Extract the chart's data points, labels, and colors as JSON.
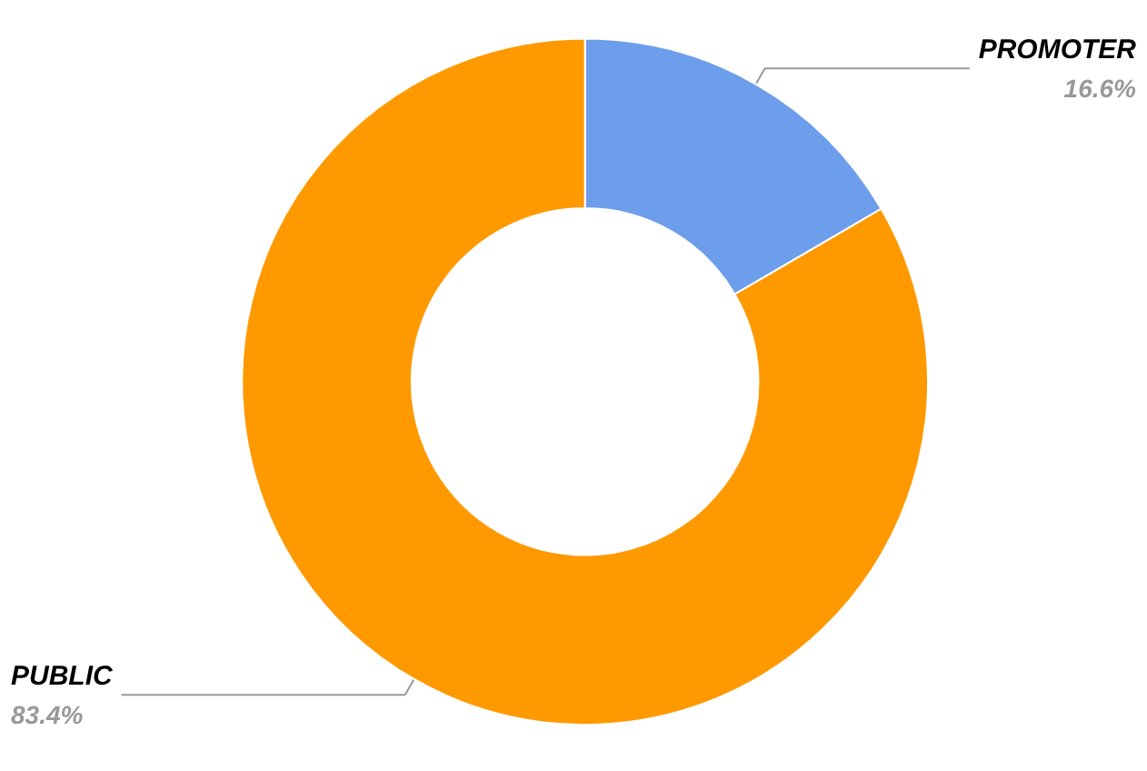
{
  "chart_data": {
    "type": "donut",
    "categories": [
      "PROMOTER",
      "PUBLIC"
    ],
    "values": [
      16.6,
      83.4
    ],
    "colors": [
      "#6d9eeb",
      "#ff9900"
    ],
    "value_labels": [
      "16.6%",
      "83.4%"
    ],
    "legend": false
  }
}
